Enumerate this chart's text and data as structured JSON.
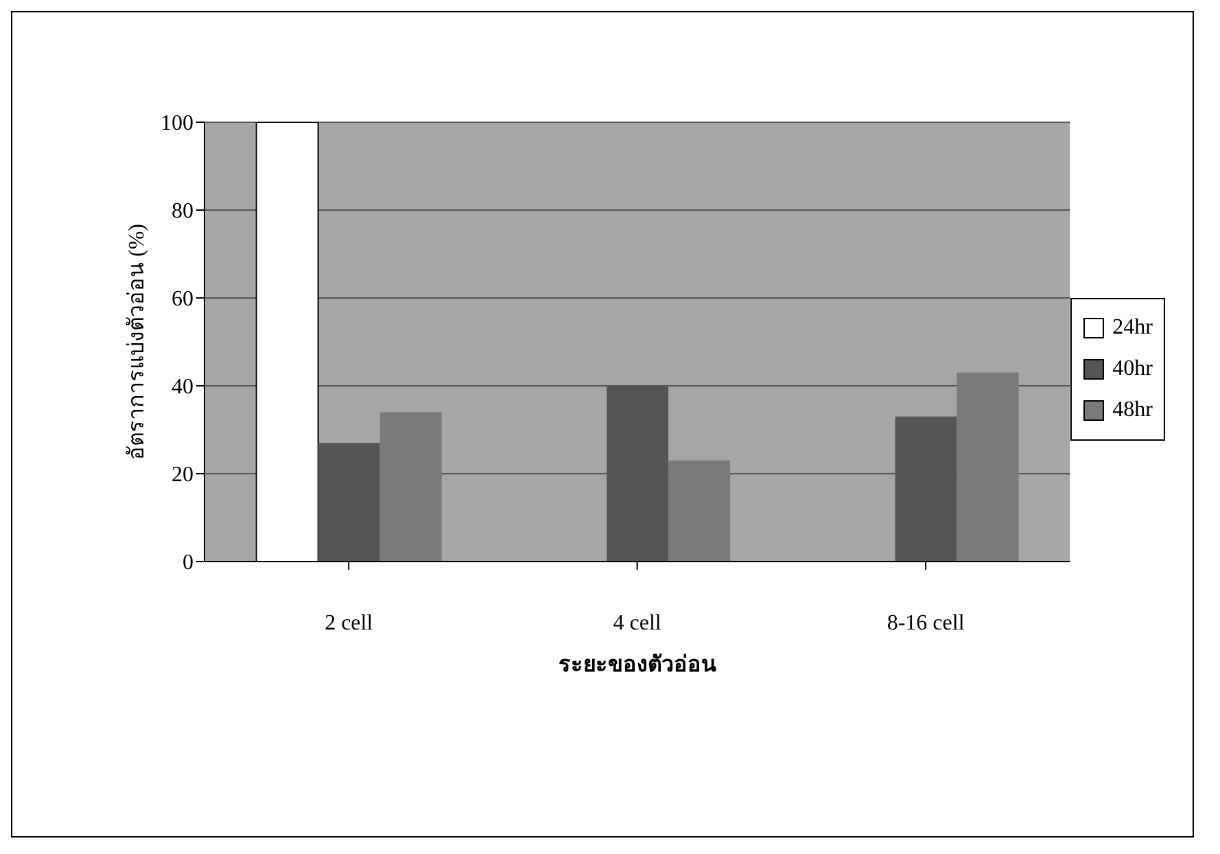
{
  "chart_data": {
    "type": "bar",
    "xlabel": "ระยะของตัวอ่อน",
    "ylabel": "อัตราการแบ่งตัวอ่อน (%)",
    "categories": [
      "2 cell",
      "4 cell",
      "8-16 cell"
    ],
    "series": [
      {
        "name": "24hr",
        "color": "#ffffff",
        "values": [
          100,
          0,
          0
        ]
      },
      {
        "name": "40hr",
        "color": "#555555",
        "values": [
          27,
          40,
          33
        ]
      },
      {
        "name": "48hr",
        "color": "#7a7a7a",
        "values": [
          34,
          23,
          43
        ]
      }
    ],
    "ylim": [
      0,
      100
    ],
    "yticks": [
      0,
      20,
      40,
      60,
      80,
      100
    ],
    "grid": "y",
    "legend": "right"
  }
}
